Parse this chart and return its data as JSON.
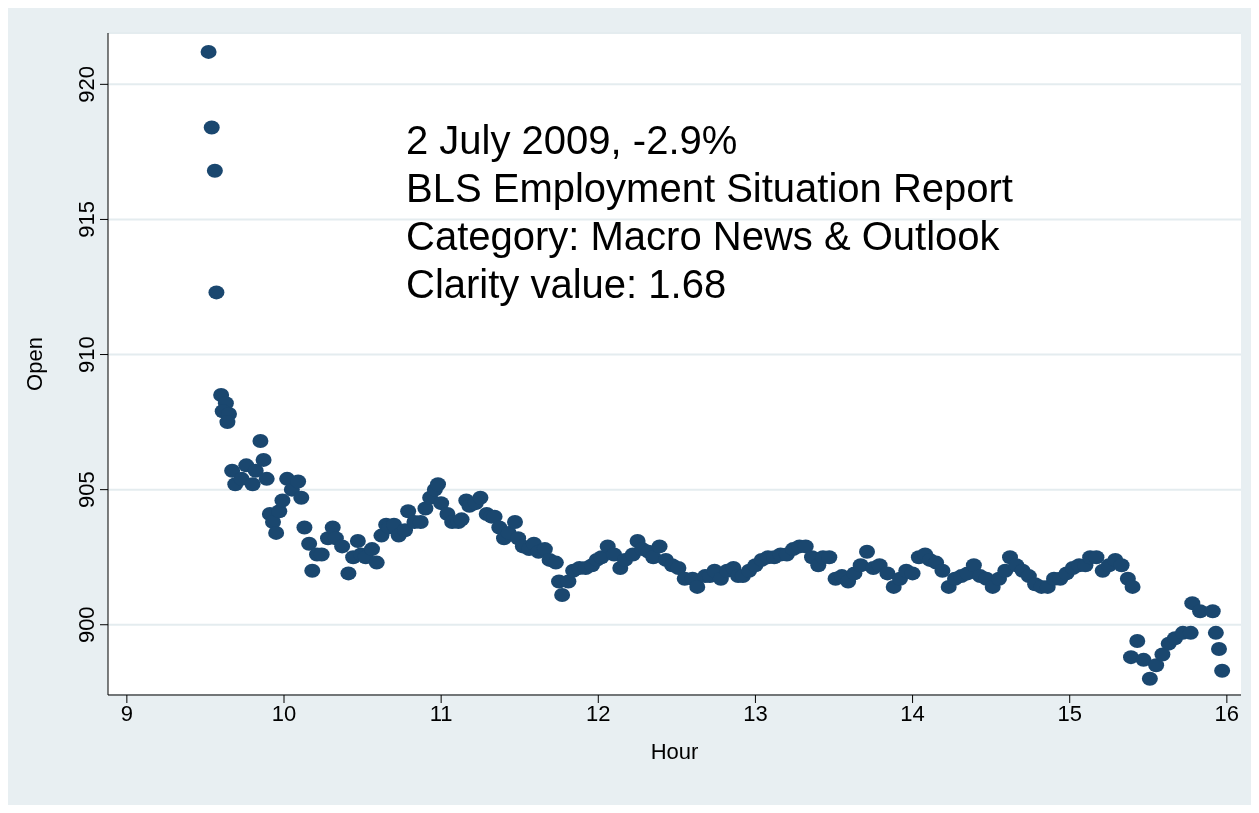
{
  "chart_data": {
    "type": "scatter",
    "xlabel": "Hour",
    "ylabel": "Open",
    "annotations": [
      "2 July 2009, -2.9%",
      "BLS Employment Situation Report",
      "Category: Macro News & Outlook",
      "Clarity value: 1.68"
    ],
    "xlim": [
      8.88,
      16.09
    ],
    "xticks": [
      9,
      10,
      11,
      12,
      13,
      14,
      15,
      16
    ],
    "ylim": [
      897.4,
      921.9
    ],
    "yticks": [
      900,
      905,
      910,
      915,
      920
    ],
    "grid": "y",
    "marker": "circle",
    "legend": false,
    "series": [
      {
        "color": "#1a476f",
        "x": [
          9.52,
          9.54,
          9.56,
          9.57,
          9.6,
          9.63,
          9.61,
          9.65,
          9.64,
          9.67,
          9.69,
          9.73,
          9.76,
          9.8,
          9.82,
          9.85,
          9.87,
          9.89,
          9.91,
          9.93,
          9.95,
          9.97,
          9.99,
          10.02,
          10.05,
          10.09,
          10.11,
          10.13,
          10.16,
          10.18,
          10.21,
          10.24,
          10.28,
          10.31,
          10.33,
          10.37,
          10.41,
          10.44,
          10.47,
          10.49,
          10.52,
          10.56,
          10.59,
          10.62,
          10.65,
          10.67,
          10.7,
          10.73,
          10.77,
          10.79,
          10.83,
          10.87,
          10.9,
          10.93,
          10.96,
          10.98,
          11.0,
          11.04,
          11.07,
          11.11,
          11.13,
          11.16,
          11.18,
          11.22,
          11.25,
          11.29,
          11.32,
          11.34,
          11.37,
          11.4,
          11.43,
          11.47,
          11.49,
          11.52,
          11.56,
          11.59,
          11.62,
          11.66,
          11.69,
          11.73,
          11.75,
          11.77,
          11.81,
          11.84,
          11.88,
          11.92,
          11.96,
          11.99,
          12.02,
          12.06,
          12.1,
          12.14,
          12.17,
          12.22,
          12.25,
          12.28,
          12.32,
          12.35,
          12.39,
          12.43,
          12.47,
          12.51,
          12.55,
          12.6,
          12.63,
          12.68,
          12.71,
          12.74,
          12.78,
          12.82,
          12.86,
          12.89,
          12.92,
          12.96,
          13.0,
          13.04,
          13.08,
          13.12,
          13.16,
          13.2,
          13.24,
          13.28,
          13.32,
          13.36,
          13.4,
          13.43,
          13.47,
          13.51,
          13.55,
          13.59,
          13.63,
          13.67,
          13.71,
          13.75,
          13.79,
          13.84,
          13.88,
          13.92,
          13.96,
          14.0,
          14.04,
          14.08,
          14.11,
          14.15,
          14.19,
          14.23,
          14.27,
          14.31,
          14.35,
          14.39,
          14.43,
          14.47,
          14.51,
          14.55,
          14.59,
          14.62,
          14.66,
          14.7,
          14.74,
          14.78,
          14.82,
          14.86,
          14.9,
          14.94,
          14.98,
          15.02,
          15.06,
          15.1,
          15.13,
          15.17,
          15.21,
          15.25,
          15.29,
          15.33,
          15.37,
          15.4,
          15.39,
          15.43,
          15.47,
          15.51,
          15.55,
          15.59,
          15.63,
          15.67,
          15.72,
          15.77,
          15.78,
          15.83,
          15.91,
          15.93,
          15.95,
          15.97
        ],
        "values": [
          921.2,
          918.4,
          916.8,
          912.3,
          908.5,
          908.2,
          907.9,
          907.8,
          907.5,
          905.7,
          905.2,
          905.4,
          905.9,
          905.2,
          905.7,
          906.8,
          906.1,
          905.4,
          904.1,
          903.8,
          903.4,
          904.2,
          904.6,
          905.4,
          905.0,
          905.3,
          904.7,
          903.6,
          903.0,
          902.0,
          902.6,
          902.6,
          903.2,
          903.6,
          903.2,
          902.9,
          901.9,
          902.5,
          903.1,
          902.6,
          902.5,
          902.8,
          902.3,
          903.3,
          903.7,
          903.6,
          903.7,
          903.3,
          903.5,
          904.2,
          903.8,
          903.8,
          904.3,
          904.7,
          905.0,
          905.2,
          904.5,
          904.1,
          903.8,
          903.8,
          903.9,
          904.6,
          904.4,
          904.5,
          904.7,
          904.1,
          904.0,
          904.0,
          903.6,
          903.2,
          903.4,
          903.8,
          903.2,
          902.9,
          902.8,
          903.0,
          902.7,
          902.8,
          902.4,
          902.3,
          901.6,
          901.1,
          901.6,
          902.0,
          902.1,
          902.1,
          902.2,
          902.4,
          902.5,
          902.9,
          902.6,
          902.1,
          902.4,
          902.6,
          903.1,
          902.8,
          902.7,
          902.5,
          902.9,
          902.4,
          902.2,
          902.1,
          901.7,
          901.7,
          901.4,
          901.8,
          901.8,
          902.0,
          901.7,
          902.0,
          902.1,
          901.8,
          901.8,
          902.0,
          902.2,
          902.4,
          902.5,
          902.5,
          902.6,
          902.6,
          902.8,
          902.9,
          902.9,
          902.5,
          902.2,
          902.5,
          902.5,
          901.7,
          901.8,
          901.6,
          901.9,
          902.2,
          902.7,
          902.1,
          902.2,
          901.9,
          901.4,
          901.7,
          902.0,
          901.9,
          902.5,
          902.6,
          902.4,
          902.3,
          902.0,
          901.4,
          901.7,
          901.8,
          901.9,
          902.2,
          901.8,
          901.7,
          901.4,
          901.7,
          902.0,
          902.5,
          902.2,
          902.0,
          901.8,
          901.5,
          901.4,
          901.4,
          901.7,
          901.7,
          901.9,
          902.1,
          902.2,
          902.2,
          902.5,
          902.5,
          902.0,
          902.2,
          902.4,
          902.2,
          901.7,
          901.4,
          898.8,
          899.4,
          898.7,
          898.0,
          898.5,
          898.9,
          899.3,
          899.5,
          899.7,
          899.7,
          900.8,
          900.5,
          900.5,
          899.7,
          899.1,
          898.3
        ]
      }
    ]
  }
}
